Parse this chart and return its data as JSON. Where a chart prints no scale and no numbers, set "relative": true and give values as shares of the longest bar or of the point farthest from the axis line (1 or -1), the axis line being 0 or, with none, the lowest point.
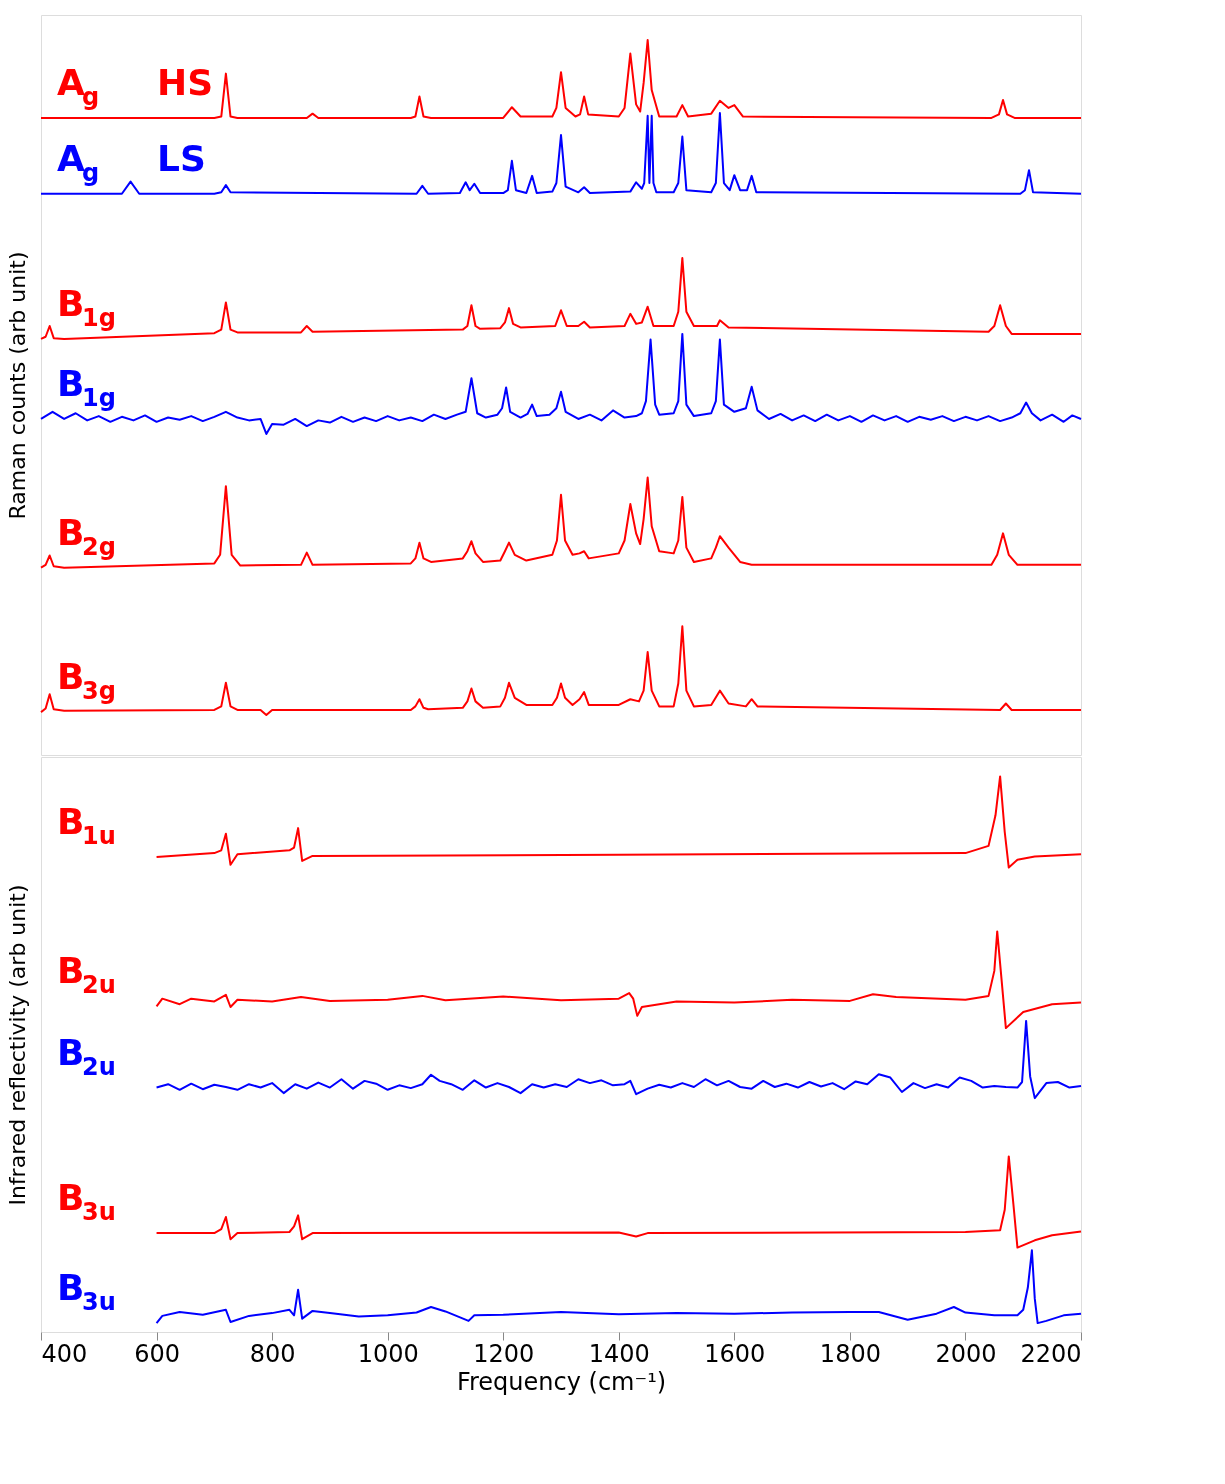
{
  "chart_data": [
    {
      "type": "line",
      "relative": true,
      "ylabel": "Raman counts (arb unit)",
      "xlim": [
        400,
        2200
      ],
      "xticks": [
        400,
        600,
        800,
        1000,
        1200,
        1400,
        1600,
        1800,
        2000,
        2200
      ],
      "tick_labels": false,
      "series": [
        {
          "name": "A$_{g}$ HS",
          "color": "#ff0000",
          "x": [
            400,
            700,
            712,
            720,
            728,
            740,
            860,
            870,
            880,
            1040,
            1048,
            1055,
            1062,
            1075,
            1200,
            1215,
            1230,
            1285,
            1292,
            1300,
            1308,
            1325,
            1333,
            1340,
            1347,
            1400,
            1410,
            1420,
            1430,
            1437,
            1443,
            1450,
            1457,
            1470,
            1500,
            1510,
            1520,
            1560,
            1575,
            1590,
            1600,
            1615,
            2045,
            2058,
            2065,
            2072,
            2085,
            2200
          ],
          "values": [
            0.891,
            0.891,
            0.893,
            0.953,
            0.893,
            0.891,
            0.891,
            0.897,
            0.891,
            0.891,
            0.893,
            0.921,
            0.893,
            0.891,
            0.891,
            0.906,
            0.893,
            0.893,
            0.905,
            0.955,
            0.905,
            0.893,
            0.896,
            0.921,
            0.896,
            0.893,
            0.905,
            0.981,
            0.91,
            0.9,
            0.94,
            1.0,
            0.93,
            0.893,
            0.893,
            0.909,
            0.893,
            0.897,
            0.915,
            0.905,
            0.909,
            0.893,
            0.891,
            0.896,
            0.916,
            0.896,
            0.891,
            0.891
          ]
        },
        {
          "name": "A$_{g}$ LS",
          "color": "#0000ff",
          "x": [
            400,
            540,
            555,
            570,
            700,
            712,
            720,
            728,
            1050,
            1060,
            1070,
            1125,
            1135,
            1142,
            1150,
            1160,
            1200,
            1208,
            1215,
            1222,
            1240,
            1250,
            1258,
            1285,
            1292,
            1300,
            1308,
            1330,
            1340,
            1350,
            1420,
            1430,
            1440,
            1444,
            1450,
            1453,
            1457,
            1460,
            1465,
            1495,
            1503,
            1510,
            1517,
            1560,
            1568,
            1575,
            1582,
            1592,
            1600,
            1610,
            1622,
            1630,
            1638,
            2095,
            2103,
            2110,
            2117,
            2200
          ],
          "values": [
            0.785,
            0.785,
            0.802,
            0.785,
            0.785,
            0.787,
            0.797,
            0.787,
            0.785,
            0.796,
            0.785,
            0.786,
            0.801,
            0.79,
            0.799,
            0.786,
            0.786,
            0.79,
            0.831,
            0.79,
            0.786,
            0.81,
            0.786,
            0.788,
            0.8,
            0.867,
            0.795,
            0.787,
            0.794,
            0.786,
            0.788,
            0.801,
            0.792,
            0.8,
            0.894,
            0.8,
            0.894,
            0.8,
            0.787,
            0.787,
            0.8,
            0.865,
            0.79,
            0.787,
            0.8,
            0.898,
            0.8,
            0.79,
            0.811,
            0.79,
            0.79,
            0.81,
            0.787,
            0.785,
            0.79,
            0.818,
            0.787,
            0.785
          ]
        },
        {
          "name": "B$_{1g}$",
          "color": "#ff0000",
          "x": [
            400,
            408,
            415,
            422,
            440,
            700,
            712,
            720,
            728,
            740,
            850,
            860,
            870,
            1130,
            1138,
            1145,
            1152,
            1160,
            1195,
            1203,
            1210,
            1217,
            1230,
            1290,
            1300,
            1310,
            1330,
            1340,
            1350,
            1410,
            1420,
            1430,
            1440,
            1450,
            1460,
            1495,
            1503,
            1510,
            1517,
            1530,
            1570,
            1575,
            1590,
            2040,
            2050,
            2060,
            2070,
            2080,
            2200
          ],
          "values": [
            0.582,
            0.585,
            0.6,
            0.583,
            0.582,
            0.59,
            0.595,
            0.633,
            0.595,
            0.591,
            0.591,
            0.6,
            0.592,
            0.595,
            0.6,
            0.629,
            0.6,
            0.596,
            0.597,
            0.605,
            0.625,
            0.603,
            0.598,
            0.6,
            0.622,
            0.6,
            0.6,
            0.606,
            0.598,
            0.6,
            0.617,
            0.603,
            0.605,
            0.627,
            0.6,
            0.6,
            0.62,
            0.695,
            0.62,
            0.6,
            0.6,
            0.608,
            0.598,
            0.592,
            0.6,
            0.629,
            0.6,
            0.589,
            0.589
          ]
        },
        {
          "name": "B$_{1g}$",
          "color": "#0000ff",
          "x": [
            400,
            420,
            440,
            460,
            480,
            500,
            520,
            540,
            560,
            580,
            600,
            620,
            640,
            660,
            680,
            700,
            720,
            740,
            760,
            780,
            790,
            800,
            820,
            840,
            860,
            880,
            900,
            920,
            940,
            960,
            980,
            1000,
            1020,
            1040,
            1060,
            1080,
            1100,
            1120,
            1135,
            1145,
            1155,
            1170,
            1190,
            1198,
            1205,
            1212,
            1230,
            1242,
            1250,
            1258,
            1280,
            1292,
            1300,
            1308,
            1330,
            1350,
            1370,
            1390,
            1410,
            1430,
            1440,
            1447,
            1455,
            1463,
            1470,
            1495,
            1503,
            1510,
            1517,
            1530,
            1560,
            1568,
            1575,
            1582,
            1600,
            1620,
            1630,
            1640,
            1660,
            1680,
            1700,
            1720,
            1740,
            1760,
            1780,
            1800,
            1820,
            1840,
            1860,
            1880,
            1900,
            1920,
            1940,
            1960,
            1980,
            2000,
            2020,
            2040,
            2060,
            2080,
            2095,
            2105,
            2115,
            2130,
            2150,
            2170,
            2185,
            2200
          ],
          "values": [
            0.47,
            0.48,
            0.47,
            0.478,
            0.468,
            0.474,
            0.466,
            0.473,
            0.468,
            0.475,
            0.466,
            0.472,
            0.469,
            0.474,
            0.467,
            0.473,
            0.48,
            0.472,
            0.468,
            0.47,
            0.449,
            0.463,
            0.462,
            0.47,
            0.46,
            0.468,
            0.465,
            0.473,
            0.466,
            0.472,
            0.467,
            0.474,
            0.468,
            0.472,
            0.467,
            0.476,
            0.47,
            0.476,
            0.48,
            0.527,
            0.478,
            0.472,
            0.476,
            0.485,
            0.514,
            0.48,
            0.472,
            0.477,
            0.49,
            0.474,
            0.476,
            0.485,
            0.508,
            0.48,
            0.47,
            0.476,
            0.468,
            0.482,
            0.472,
            0.474,
            0.478,
            0.495,
            0.581,
            0.49,
            0.476,
            0.478,
            0.495,
            0.589,
            0.49,
            0.474,
            0.478,
            0.495,
            0.581,
            0.49,
            0.48,
            0.485,
            0.515,
            0.482,
            0.47,
            0.477,
            0.468,
            0.475,
            0.467,
            0.476,
            0.468,
            0.474,
            0.466,
            0.475,
            0.468,
            0.474,
            0.466,
            0.473,
            0.469,
            0.474,
            0.467,
            0.473,
            0.468,
            0.474,
            0.467,
            0.472,
            0.478,
            0.493,
            0.478,
            0.468,
            0.476,
            0.466,
            0.475,
            0.47
          ]
        },
        {
          "name": "B$_{2g}$",
          "color": "#ff0000",
          "x": [
            400,
            408,
            415,
            422,
            440,
            700,
            710,
            720,
            730,
            745,
            850,
            860,
            870,
            1040,
            1048,
            1055,
            1062,
            1075,
            1130,
            1138,
            1145,
            1152,
            1165,
            1195,
            1203,
            1210,
            1220,
            1240,
            1285,
            1293,
            1300,
            1307,
            1320,
            1332,
            1340,
            1348,
            1400,
            1410,
            1420,
            1430,
            1437,
            1443,
            1450,
            1457,
            1470,
            1495,
            1503,
            1510,
            1517,
            1530,
            1560,
            1568,
            1575,
            1590,
            1610,
            1630,
            2045,
            2055,
            2065,
            2075,
            2090,
            2200
          ],
          "values": [
            0.262,
            0.266,
            0.279,
            0.264,
            0.262,
            0.268,
            0.28,
            0.376,
            0.28,
            0.265,
            0.266,
            0.283,
            0.266,
            0.268,
            0.275,
            0.297,
            0.275,
            0.27,
            0.275,
            0.285,
            0.299,
            0.282,
            0.27,
            0.272,
            0.285,
            0.297,
            0.28,
            0.272,
            0.28,
            0.3,
            0.364,
            0.3,
            0.28,
            0.282,
            0.285,
            0.275,
            0.282,
            0.3,
            0.351,
            0.31,
            0.295,
            0.33,
            0.388,
            0.32,
            0.285,
            0.282,
            0.3,
            0.361,
            0.29,
            0.27,
            0.275,
            0.29,
            0.306,
            0.29,
            0.27,
            0.266,
            0.266,
            0.28,
            0.31,
            0.28,
            0.266,
            0.266
          ]
        },
        {
          "name": "B$_{3g}$",
          "color": "#ff0000",
          "x": [
            400,
            408,
            415,
            422,
            440,
            700,
            712,
            720,
            728,
            740,
            780,
            790,
            800,
            1040,
            1048,
            1055,
            1062,
            1070,
            1130,
            1138,
            1145,
            1152,
            1165,
            1195,
            1203,
            1210,
            1220,
            1240,
            1285,
            1293,
            1300,
            1307,
            1320,
            1332,
            1340,
            1348,
            1400,
            1420,
            1435,
            1443,
            1450,
            1457,
            1470,
            1495,
            1503,
            1510,
            1517,
            1530,
            1560,
            1575,
            1590,
            1620,
            1630,
            1640,
            2060,
            2070,
            2080,
            2200
          ],
          "values": [
            0.06,
            0.065,
            0.085,
            0.064,
            0.062,
            0.063,
            0.068,
            0.101,
            0.068,
            0.063,
            0.063,
            0.056,
            0.063,
            0.063,
            0.068,
            0.078,
            0.066,
            0.064,
            0.066,
            0.075,
            0.093,
            0.075,
            0.066,
            0.068,
            0.08,
            0.101,
            0.08,
            0.07,
            0.07,
            0.08,
            0.1,
            0.08,
            0.07,
            0.078,
            0.088,
            0.07,
            0.07,
            0.078,
            0.075,
            0.09,
            0.144,
            0.09,
            0.068,
            0.068,
            0.1,
            0.18,
            0.09,
            0.068,
            0.07,
            0.09,
            0.072,
            0.068,
            0.078,
            0.068,
            0.063,
            0.072,
            0.063,
            0.063
          ]
        }
      ]
    },
    {
      "type": "line",
      "relative": true,
      "ylabel": "Infrared reflectivity (arb unit)",
      "xlabel": "Frequency (cm⁻¹)",
      "xlim": [
        400,
        2200
      ],
      "xticks": [
        400,
        600,
        800,
        1000,
        1200,
        1400,
        1600,
        1800,
        2000,
        2200
      ],
      "tick_labels": "x",
      "series": [
        {
          "name": "B$_{1u}$",
          "color": "#ff0000",
          "x": [
            600,
            700,
            712,
            720,
            728,
            740,
            830,
            838,
            845,
            852,
            870,
            1400,
            2000,
            2040,
            2052,
            2060,
            2068,
            2075,
            2090,
            2120,
            2200
          ],
          "values": [
            0.855,
            0.862,
            0.867,
            0.897,
            0.841,
            0.86,
            0.867,
            0.872,
            0.907,
            0.848,
            0.857,
            0.859,
            0.862,
            0.875,
            0.93,
            1.0,
            0.9,
            0.836,
            0.85,
            0.856,
            0.86
          ]
        },
        {
          "name": "B$_{2u}$",
          "color": "#ff0000",
          "x": [
            600,
            610,
            640,
            660,
            700,
            720,
            728,
            740,
            800,
            850,
            900,
            1000,
            1060,
            1100,
            1200,
            1300,
            1400,
            1418,
            1425,
            1432,
            1440,
            1500,
            1600,
            1700,
            1800,
            1840,
            1880,
            2000,
            2040,
            2050,
            2055,
            2062,
            2070,
            2100,
            2150,
            2200
          ],
          "values": [
            0.586,
            0.6,
            0.59,
            0.6,
            0.595,
            0.607,
            0.585,
            0.598,
            0.595,
            0.603,
            0.596,
            0.598,
            0.605,
            0.597,
            0.604,
            0.597,
            0.6,
            0.61,
            0.6,
            0.569,
            0.585,
            0.595,
            0.593,
            0.598,
            0.596,
            0.608,
            0.603,
            0.598,
            0.605,
            0.65,
            0.721,
            0.64,
            0.547,
            0.576,
            0.59,
            0.593
          ]
        },
        {
          "name": "B$_{2u}$",
          "color": "#0000ff",
          "x": [
            600,
            620,
            640,
            660,
            680,
            700,
            720,
            740,
            760,
            780,
            800,
            820,
            840,
            860,
            880,
            900,
            920,
            940,
            960,
            980,
            1000,
            1020,
            1040,
            1060,
            1075,
            1090,
            1110,
            1130,
            1150,
            1170,
            1190,
            1210,
            1230,
            1250,
            1270,
            1290,
            1310,
            1330,
            1350,
            1370,
            1390,
            1410,
            1420,
            1430,
            1450,
            1470,
            1490,
            1510,
            1530,
            1550,
            1570,
            1590,
            1610,
            1630,
            1650,
            1670,
            1690,
            1710,
            1730,
            1750,
            1770,
            1790,
            1810,
            1830,
            1850,
            1870,
            1890,
            1910,
            1930,
            1950,
            1970,
            1990,
            2010,
            2030,
            2050,
            2070,
            2090,
            2098,
            2105,
            2112,
            2120,
            2140,
            2160,
            2180,
            2200
          ],
          "values": [
            0.44,
            0.446,
            0.436,
            0.447,
            0.437,
            0.445,
            0.441,
            0.436,
            0.446,
            0.44,
            0.448,
            0.43,
            0.446,
            0.438,
            0.449,
            0.44,
            0.455,
            0.438,
            0.452,
            0.447,
            0.436,
            0.444,
            0.439,
            0.446,
            0.463,
            0.452,
            0.446,
            0.436,
            0.453,
            0.44,
            0.448,
            0.441,
            0.43,
            0.446,
            0.44,
            0.446,
            0.441,
            0.455,
            0.448,
            0.453,
            0.444,
            0.446,
            0.452,
            0.428,
            0.438,
            0.445,
            0.44,
            0.448,
            0.441,
            0.455,
            0.444,
            0.452,
            0.441,
            0.438,
            0.452,
            0.441,
            0.447,
            0.44,
            0.45,
            0.442,
            0.448,
            0.437,
            0.451,
            0.446,
            0.464,
            0.458,
            0.432,
            0.448,
            0.439,
            0.446,
            0.44,
            0.458,
            0.452,
            0.44,
            0.443,
            0.441,
            0.44,
            0.45,
            0.56,
            0.46,
            0.421,
            0.448,
            0.45,
            0.44,
            0.443
          ]
        },
        {
          "name": "B$_{3u}$",
          "color": "#ff0000",
          "x": [
            600,
            700,
            712,
            720,
            728,
            740,
            830,
            838,
            845,
            852,
            870,
            1400,
            1430,
            1450,
            2000,
            2060,
            2068,
            2075,
            2083,
            2090,
            2120,
            2150,
            2200
          ],
          "values": [
            0.178,
            0.178,
            0.185,
            0.207,
            0.167,
            0.178,
            0.18,
            0.19,
            0.21,
            0.167,
            0.178,
            0.179,
            0.172,
            0.178,
            0.18,
            0.183,
            0.22,
            0.316,
            0.23,
            0.152,
            0.165,
            0.174,
            0.181
          ]
        },
        {
          "name": "B$_{3u}$",
          "color": "#0000ff",
          "x": [
            600,
            610,
            640,
            680,
            720,
            728,
            760,
            800,
            830,
            838,
            845,
            852,
            870,
            900,
            950,
            1000,
            1050,
            1075,
            1100,
            1140,
            1150,
            1200,
            1300,
            1400,
            1500,
            1600,
            1700,
            1800,
            1850,
            1900,
            1950,
            1980,
            2000,
            2050,
            2090,
            2100,
            2108,
            2115,
            2120,
            2125,
            2140,
            2170,
            2200
          ],
          "values": [
            0.016,
            0.029,
            0.036,
            0.031,
            0.04,
            0.018,
            0.029,
            0.034,
            0.04,
            0.03,
            0.076,
            0.024,
            0.038,
            0.034,
            0.028,
            0.03,
            0.035,
            0.045,
            0.037,
            0.02,
            0.03,
            0.031,
            0.036,
            0.032,
            0.034,
            0.033,
            0.035,
            0.036,
            0.036,
            0.022,
            0.033,
            0.045,
            0.035,
            0.03,
            0.03,
            0.04,
            0.08,
            0.147,
            0.06,
            0.016,
            0.02,
            0.03,
            0.033
          ]
        }
      ]
    }
  ]
}
